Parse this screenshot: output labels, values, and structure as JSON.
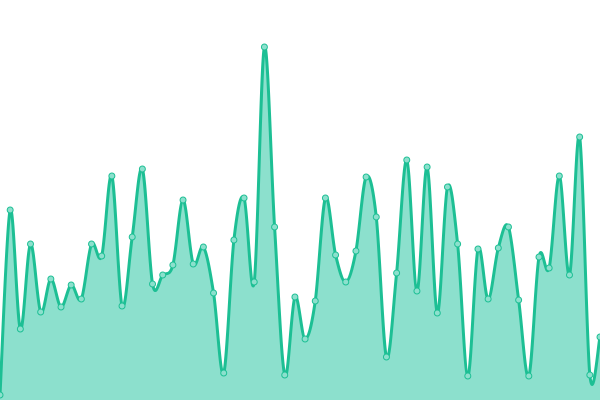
{
  "chart_data": {
    "type": "area",
    "title": "",
    "xlabel": "",
    "ylabel": "",
    "grid": false,
    "axes_visible": false,
    "ylim": [
      0,
      400
    ],
    "x": [
      0,
      1,
      2,
      3,
      4,
      5,
      6,
      7,
      8,
      9,
      10,
      11,
      12,
      13,
      14,
      15,
      16,
      17,
      18,
      19,
      20,
      21,
      22,
      23,
      24,
      25,
      26,
      27,
      28,
      29,
      30,
      31,
      32,
      33,
      34,
      35,
      36,
      37,
      38,
      39,
      40,
      41,
      42,
      43,
      44,
      45,
      46,
      47,
      48,
      49,
      50,
      51,
      52,
      53,
      54,
      55,
      56,
      57,
      58,
      59
    ],
    "values": [
      5,
      190,
      71,
      156,
      88,
      121,
      93,
      115,
      101,
      156,
      144,
      224,
      94,
      163,
      231,
      116,
      125,
      135,
      200,
      136,
      153,
      107,
      27,
      160,
      202,
      118,
      353,
      173,
      25,
      103,
      61,
      99,
      202,
      145,
      118,
      149,
      223,
      183,
      43,
      127,
      240,
      109,
      233,
      87,
      213,
      156,
      24,
      151,
      101,
      152,
      173,
      100,
      24,
      143,
      132,
      224,
      125,
      263,
      25,
      63
    ],
    "colors": {
      "line": "#1dbf94",
      "fill": "#8ce0cd",
      "marker_fill": "#8ce0cd",
      "marker_stroke": "#1dbf94"
    }
  }
}
